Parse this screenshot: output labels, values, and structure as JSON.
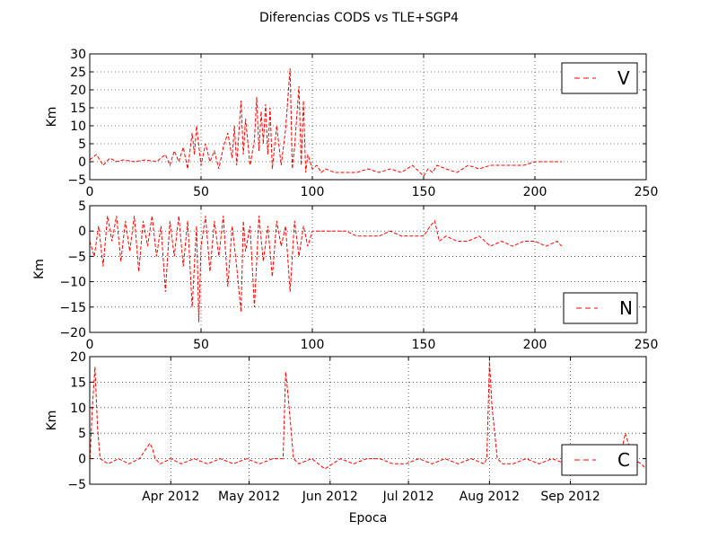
{
  "figure": {
    "title": "Diferencias CODS vs TLE+SGP4",
    "series_color": "#ff0000",
    "grid": true,
    "line_style": "dashed"
  },
  "chart_data": [
    {
      "type": "line",
      "ylabel": "Km",
      "xlabel": "",
      "xlim": [
        0,
        250
      ],
      "ylim": [
        -5,
        30
      ],
      "xticks": [
        "0",
        "50",
        "100",
        "150",
        "200",
        "250"
      ],
      "yticks": [
        "−5",
        "0",
        "5",
        "10",
        "15",
        "20",
        "25",
        "30"
      ],
      "legend": {
        "placement": "top-right",
        "entries": [
          "V"
        ]
      },
      "series": [
        {
          "name": "V",
          "x": [
            0,
            3,
            6,
            9,
            12,
            15,
            20,
            25,
            30,
            34,
            36,
            38,
            40,
            42,
            44,
            46,
            47,
            48,
            50,
            52,
            54,
            56,
            58,
            60,
            62,
            64,
            65,
            66,
            68,
            69,
            70,
            72,
            74,
            75,
            76,
            77,
            78,
            79,
            80,
            81,
            82,
            84,
            86,
            88,
            90,
            91,
            92,
            94,
            95,
            96,
            97,
            98,
            100,
            102,
            104,
            106,
            110,
            115,
            120,
            125,
            130,
            135,
            140,
            145,
            150,
            152,
            154,
            156,
            160,
            165,
            170,
            175,
            180,
            185,
            190,
            195,
            200,
            205,
            210,
            212
          ],
          "y": [
            0.5,
            2,
            -1,
            1,
            0,
            0.5,
            0,
            0.5,
            0,
            2,
            -1,
            3,
            0,
            4,
            -2,
            8,
            2,
            10,
            -1,
            5,
            0,
            3,
            -2,
            4,
            8,
            1,
            10,
            -1,
            17,
            2,
            12,
            -1,
            6,
            18,
            3,
            14,
            5,
            16,
            2,
            15,
            -2,
            10,
            -1,
            9,
            26,
            -2,
            4,
            21,
            -1,
            17,
            -3,
            2,
            -2,
            -1,
            -3,
            -2,
            -3,
            -3,
            -3,
            -2,
            -3,
            -2,
            -3,
            -1,
            -4,
            -2,
            -3,
            -1,
            -2,
            -3,
            -1,
            -2,
            -1,
            -1,
            -1,
            -1,
            0,
            0,
            0,
            0
          ]
        }
      ]
    },
    {
      "type": "line",
      "ylabel": "Km",
      "xlabel": "",
      "xlim": [
        0,
        250
      ],
      "ylim": [
        -20,
        5
      ],
      "xticks": [
        "0",
        "50",
        "100",
        "150",
        "200",
        "250"
      ],
      "yticks": [
        "−20",
        "−15",
        "−10",
        "−5",
        "0",
        "5"
      ],
      "legend": {
        "placement": "bottom-right",
        "entries": [
          "N"
        ]
      },
      "series": [
        {
          "name": "N",
          "x": [
            0,
            2,
            4,
            6,
            8,
            10,
            12,
            14,
            16,
            18,
            20,
            22,
            24,
            26,
            28,
            30,
            32,
            34,
            36,
            38,
            40,
            42,
            44,
            46,
            48,
            49,
            50,
            52,
            54,
            56,
            58,
            60,
            62,
            64,
            66,
            68,
            69,
            70,
            72,
            74,
            76,
            78,
            80,
            82,
            84,
            86,
            88,
            90,
            92,
            94,
            96,
            98,
            100,
            105,
            110,
            115,
            120,
            125,
            130,
            135,
            140,
            145,
            150,
            153,
            155,
            157,
            160,
            165,
            170,
            175,
            180,
            185,
            190,
            195,
            200,
            205,
            210,
            212
          ],
          "y": [
            -2,
            -5,
            1,
            -7,
            3,
            -2,
            3,
            -6,
            2,
            -4,
            3,
            -8,
            2,
            -3,
            3,
            -5,
            1,
            -12,
            2,
            -5,
            3,
            -7,
            2,
            -15,
            1,
            -18,
            -3,
            3,
            -8,
            2,
            -5,
            3,
            -11,
            1,
            -7,
            -16,
            2,
            -4,
            1,
            -15,
            3,
            -6,
            1,
            -9,
            2,
            -3,
            1,
            -12,
            2,
            -5,
            1,
            -3,
            0,
            0,
            0,
            0,
            -1,
            -1,
            -1,
            0,
            -1,
            -1,
            -1,
            1,
            2,
            -2,
            -1,
            -2,
            -2,
            -1,
            -3,
            -2,
            -3,
            -2,
            -2,
            -3,
            -2,
            -3
          ]
        }
      ]
    },
    {
      "type": "line",
      "ylabel": "Km",
      "xlabel": "Epoca",
      "xlim": [
        "2012-03-01",
        "2012-09-30"
      ],
      "ylim": [
        -5,
        20
      ],
      "xticks": [
        "Apr 2012",
        "May 2012",
        "Jun 2012",
        "Jul 2012",
        "Aug 2012",
        "Sep 2012"
      ],
      "yticks": [
        "−5",
        "0",
        "5",
        "10",
        "15",
        "20"
      ],
      "legend": {
        "placement": "bottom-right",
        "entries": [
          "C"
        ]
      },
      "series": [
        {
          "name": "C",
          "x": [
            "2012-03-01",
            "2012-03-02",
            "2012-03-03",
            "2012-03-04",
            "2012-03-05",
            "2012-03-08",
            "2012-03-12",
            "2012-03-16",
            "2012-03-20",
            "2012-03-24",
            "2012-03-25",
            "2012-03-26",
            "2012-03-28",
            "2012-04-01",
            "2012-04-05",
            "2012-04-10",
            "2012-04-15",
            "2012-04-20",
            "2012-04-25",
            "2012-04-30",
            "2012-05-05",
            "2012-05-10",
            "2012-05-14",
            "2012-05-15",
            "2012-05-16",
            "2012-05-18",
            "2012-05-20",
            "2012-05-25",
            "2012-05-30",
            "2012-06-05",
            "2012-06-10",
            "2012-06-15",
            "2012-06-20",
            "2012-06-25",
            "2012-06-30",
            "2012-07-05",
            "2012-07-10",
            "2012-07-15",
            "2012-07-20",
            "2012-07-25",
            "2012-07-30",
            "2012-07-31",
            "2012-08-01",
            "2012-08-02",
            "2012-08-04",
            "2012-08-06",
            "2012-08-10",
            "2012-08-15",
            "2012-08-20",
            "2012-08-25",
            "2012-08-30",
            "2012-09-05",
            "2012-09-10",
            "2012-09-15",
            "2012-09-20",
            "2012-09-22",
            "2012-09-25",
            "2012-09-28",
            "2012-09-30"
          ],
          "y": [
            -1,
            10,
            18,
            6,
            0,
            -1,
            0,
            -1,
            0,
            3,
            2,
            0,
            -1,
            0,
            -1,
            0,
            -1,
            0,
            -1,
            0,
            -1,
            0,
            0,
            17,
            12,
            0,
            -1,
            0,
            -2,
            0,
            -1,
            0,
            0,
            -1,
            -1,
            0,
            -1,
            0,
            -1,
            0,
            -1,
            0,
            19,
            10,
            0,
            -1,
            -1,
            0,
            -1,
            0,
            -1,
            0,
            -1,
            0,
            0,
            5,
            0,
            -1,
            -2
          ]
        }
      ]
    }
  ]
}
